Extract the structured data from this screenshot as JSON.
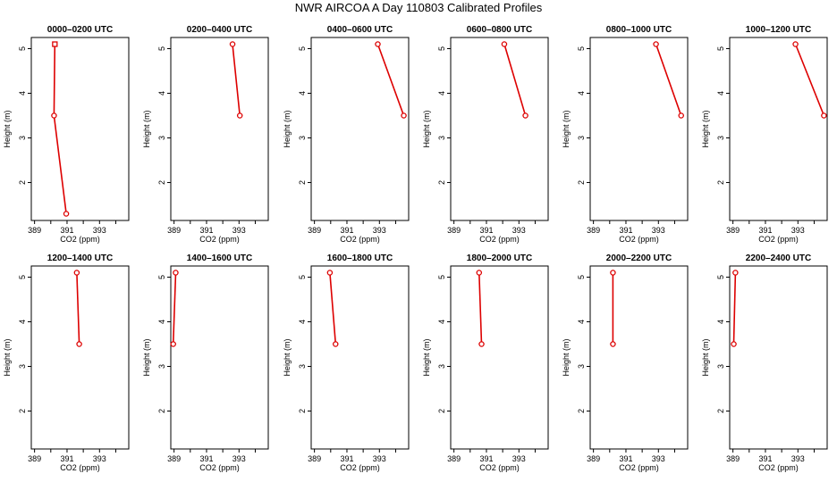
{
  "title": "NWR AIRCOA A  Day 110803  Calibrated Profiles",
  "colors": {
    "series": "#dd0000",
    "axis": "#000000"
  },
  "chart_data": [
    {
      "type": "line",
      "title": "0000–0200 UTC",
      "xlabel": "CO2 (ppm)",
      "ylabel": "Height (m)",
      "xlim": [
        388.8,
        394.8
      ],
      "ylim": [
        1.15,
        5.25
      ],
      "xticks": [
        389,
        390,
        391,
        392,
        393,
        394
      ],
      "xtick_labels": [
        "389",
        "",
        "391",
        "",
        "393",
        ""
      ],
      "yticks": [
        2,
        3,
        4,
        5
      ],
      "ytick_labels": [
        "2",
        "3",
        "4",
        "5"
      ],
      "x": [
        390.25,
        390.2,
        390.95
      ],
      "y": [
        5.1,
        3.5,
        1.3
      ]
    },
    {
      "type": "line",
      "title": "0200–0400 UTC",
      "xlabel": "CO2 (ppm)",
      "ylabel": "Height (m)",
      "xlim": [
        388.8,
        394.8
      ],
      "ylim": [
        1.15,
        5.25
      ],
      "xticks": [
        389,
        390,
        391,
        392,
        393,
        394
      ],
      "xtick_labels": [
        "389",
        "",
        "391",
        "",
        "393",
        ""
      ],
      "yticks": [
        2,
        3,
        4,
        5
      ],
      "ytick_labels": [
        "2",
        "3",
        "4",
        "5"
      ],
      "x": [
        392.6,
        393.05
      ],
      "y": [
        5.1,
        3.5
      ]
    },
    {
      "type": "line",
      "title": "0400–0600 UTC",
      "xlabel": "CO2 (ppm)",
      "ylabel": "Height (m)",
      "xlim": [
        388.8,
        394.8
      ],
      "ylim": [
        1.15,
        5.25
      ],
      "xticks": [
        389,
        390,
        391,
        392,
        393,
        394
      ],
      "xtick_labels": [
        "389",
        "",
        "391",
        "",
        "393",
        ""
      ],
      "yticks": [
        2,
        3,
        4,
        5
      ],
      "ytick_labels": [
        "2",
        "3",
        "4",
        "5"
      ],
      "x": [
        392.9,
        394.5
      ],
      "y": [
        5.1,
        3.5
      ]
    },
    {
      "type": "line",
      "title": "0600–0800 UTC",
      "xlabel": "CO2 (ppm)",
      "ylabel": "Height (m)",
      "xlim": [
        388.8,
        394.8
      ],
      "ylim": [
        1.15,
        5.25
      ],
      "xticks": [
        389,
        390,
        391,
        392,
        393,
        394
      ],
      "xtick_labels": [
        "389",
        "",
        "391",
        "",
        "393",
        ""
      ],
      "yticks": [
        2,
        3,
        4,
        5
      ],
      "ytick_labels": [
        "2",
        "3",
        "4",
        "5"
      ],
      "x": [
        392.1,
        393.4
      ],
      "y": [
        5.1,
        3.5
      ]
    },
    {
      "type": "line",
      "title": "0800–1000 UTC",
      "xlabel": "CO2 (ppm)",
      "ylabel": "Height (m)",
      "xlim": [
        388.8,
        394.8
      ],
      "ylim": [
        1.15,
        5.25
      ],
      "xticks": [
        389,
        390,
        391,
        392,
        393,
        394
      ],
      "xtick_labels": [
        "389",
        "",
        "391",
        "",
        "393",
        ""
      ],
      "yticks": [
        2,
        3,
        4,
        5
      ],
      "ytick_labels": [
        "2",
        "3",
        "4",
        "5"
      ],
      "x": [
        392.85,
        394.4
      ],
      "y": [
        5.1,
        3.5
      ]
    },
    {
      "type": "line",
      "title": "1000–1200 UTC",
      "xlabel": "CO2 (ppm)",
      "ylabel": "Height (m)",
      "xlim": [
        388.8,
        394.8
      ],
      "ylim": [
        1.15,
        5.25
      ],
      "xticks": [
        389,
        390,
        391,
        392,
        393,
        394
      ],
      "xtick_labels": [
        "389",
        "",
        "391",
        "",
        "393",
        ""
      ],
      "yticks": [
        2,
        3,
        4,
        5
      ],
      "ytick_labels": [
        "2",
        "3",
        "4",
        "5"
      ],
      "x": [
        392.85,
        394.6
      ],
      "y": [
        5.1,
        3.5
      ]
    },
    {
      "type": "line",
      "title": "1200–1400 UTC",
      "xlabel": "CO2 (ppm)",
      "ylabel": "Height (m)",
      "xlim": [
        388.8,
        394.8
      ],
      "ylim": [
        1.15,
        5.25
      ],
      "xticks": [
        389,
        390,
        391,
        392,
        393,
        394
      ],
      "xtick_labels": [
        "389",
        "",
        "391",
        "",
        "393",
        ""
      ],
      "yticks": [
        2,
        3,
        4,
        5
      ],
      "ytick_labels": [
        "2",
        "3",
        "4",
        "5"
      ],
      "x": [
        391.6,
        391.75
      ],
      "y": [
        5.1,
        3.5
      ]
    },
    {
      "type": "line",
      "title": "1400–1600 UTC",
      "xlabel": "CO2 (ppm)",
      "ylabel": "Height (m)",
      "xlim": [
        388.8,
        394.8
      ],
      "ylim": [
        1.15,
        5.25
      ],
      "xticks": [
        389,
        390,
        391,
        392,
        393,
        394
      ],
      "xtick_labels": [
        "389",
        "",
        "391",
        "",
        "393",
        ""
      ],
      "yticks": [
        2,
        3,
        4,
        5
      ],
      "ytick_labels": [
        "2",
        "3",
        "4",
        "5"
      ],
      "x": [
        389.1,
        388.95
      ],
      "y": [
        5.1,
        3.5
      ]
    },
    {
      "type": "line",
      "title": "1600–1800 UTC",
      "xlabel": "CO2 (ppm)",
      "ylabel": "Height (m)",
      "xlim": [
        388.8,
        394.8
      ],
      "ylim": [
        1.15,
        5.25
      ],
      "xticks": [
        389,
        390,
        391,
        392,
        393,
        394
      ],
      "xtick_labels": [
        "389",
        "",
        "391",
        "",
        "393",
        ""
      ],
      "yticks": [
        2,
        3,
        4,
        5
      ],
      "ytick_labels": [
        "2",
        "3",
        "4",
        "5"
      ],
      "x": [
        389.95,
        390.3
      ],
      "y": [
        5.1,
        3.5
      ]
    },
    {
      "type": "line",
      "title": "1800–2000 UTC",
      "xlabel": "CO2 (ppm)",
      "ylabel": "Height (m)",
      "xlim": [
        388.8,
        394.8
      ],
      "ylim": [
        1.15,
        5.25
      ],
      "xticks": [
        389,
        390,
        391,
        392,
        393,
        394
      ],
      "xtick_labels": [
        "389",
        "",
        "391",
        "",
        "393",
        ""
      ],
      "yticks": [
        2,
        3,
        4,
        5
      ],
      "ytick_labels": [
        "2",
        "3",
        "4",
        "5"
      ],
      "x": [
        390.55,
        390.7
      ],
      "y": [
        5.1,
        3.5
      ]
    },
    {
      "type": "line",
      "title": "2000–2200 UTC",
      "xlabel": "CO2 (ppm)",
      "ylabel": "Height (m)",
      "xlim": [
        388.8,
        394.8
      ],
      "ylim": [
        1.15,
        5.25
      ],
      "xticks": [
        389,
        390,
        391,
        392,
        393,
        394
      ],
      "xtick_labels": [
        "389",
        "",
        "391",
        "",
        "393",
        ""
      ],
      "yticks": [
        2,
        3,
        4,
        5
      ],
      "ytick_labels": [
        "2",
        "3",
        "4",
        "5"
      ],
      "x": [
        390.2,
        390.2
      ],
      "y": [
        5.1,
        3.5
      ]
    },
    {
      "type": "line",
      "title": "2200–2400 UTC",
      "xlabel": "CO2 (ppm)",
      "ylabel": "Height (m)",
      "xlim": [
        388.8,
        394.8
      ],
      "ylim": [
        1.15,
        5.25
      ],
      "xticks": [
        389,
        390,
        391,
        392,
        393,
        394
      ],
      "xtick_labels": [
        "389",
        "",
        "391",
        "",
        "393",
        ""
      ],
      "yticks": [
        2,
        3,
        4,
        5
      ],
      "ytick_labels": [
        "2",
        "3",
        "4",
        "5"
      ],
      "x": [
        389.15,
        389.05
      ],
      "y": [
        5.1,
        3.5
      ]
    }
  ]
}
